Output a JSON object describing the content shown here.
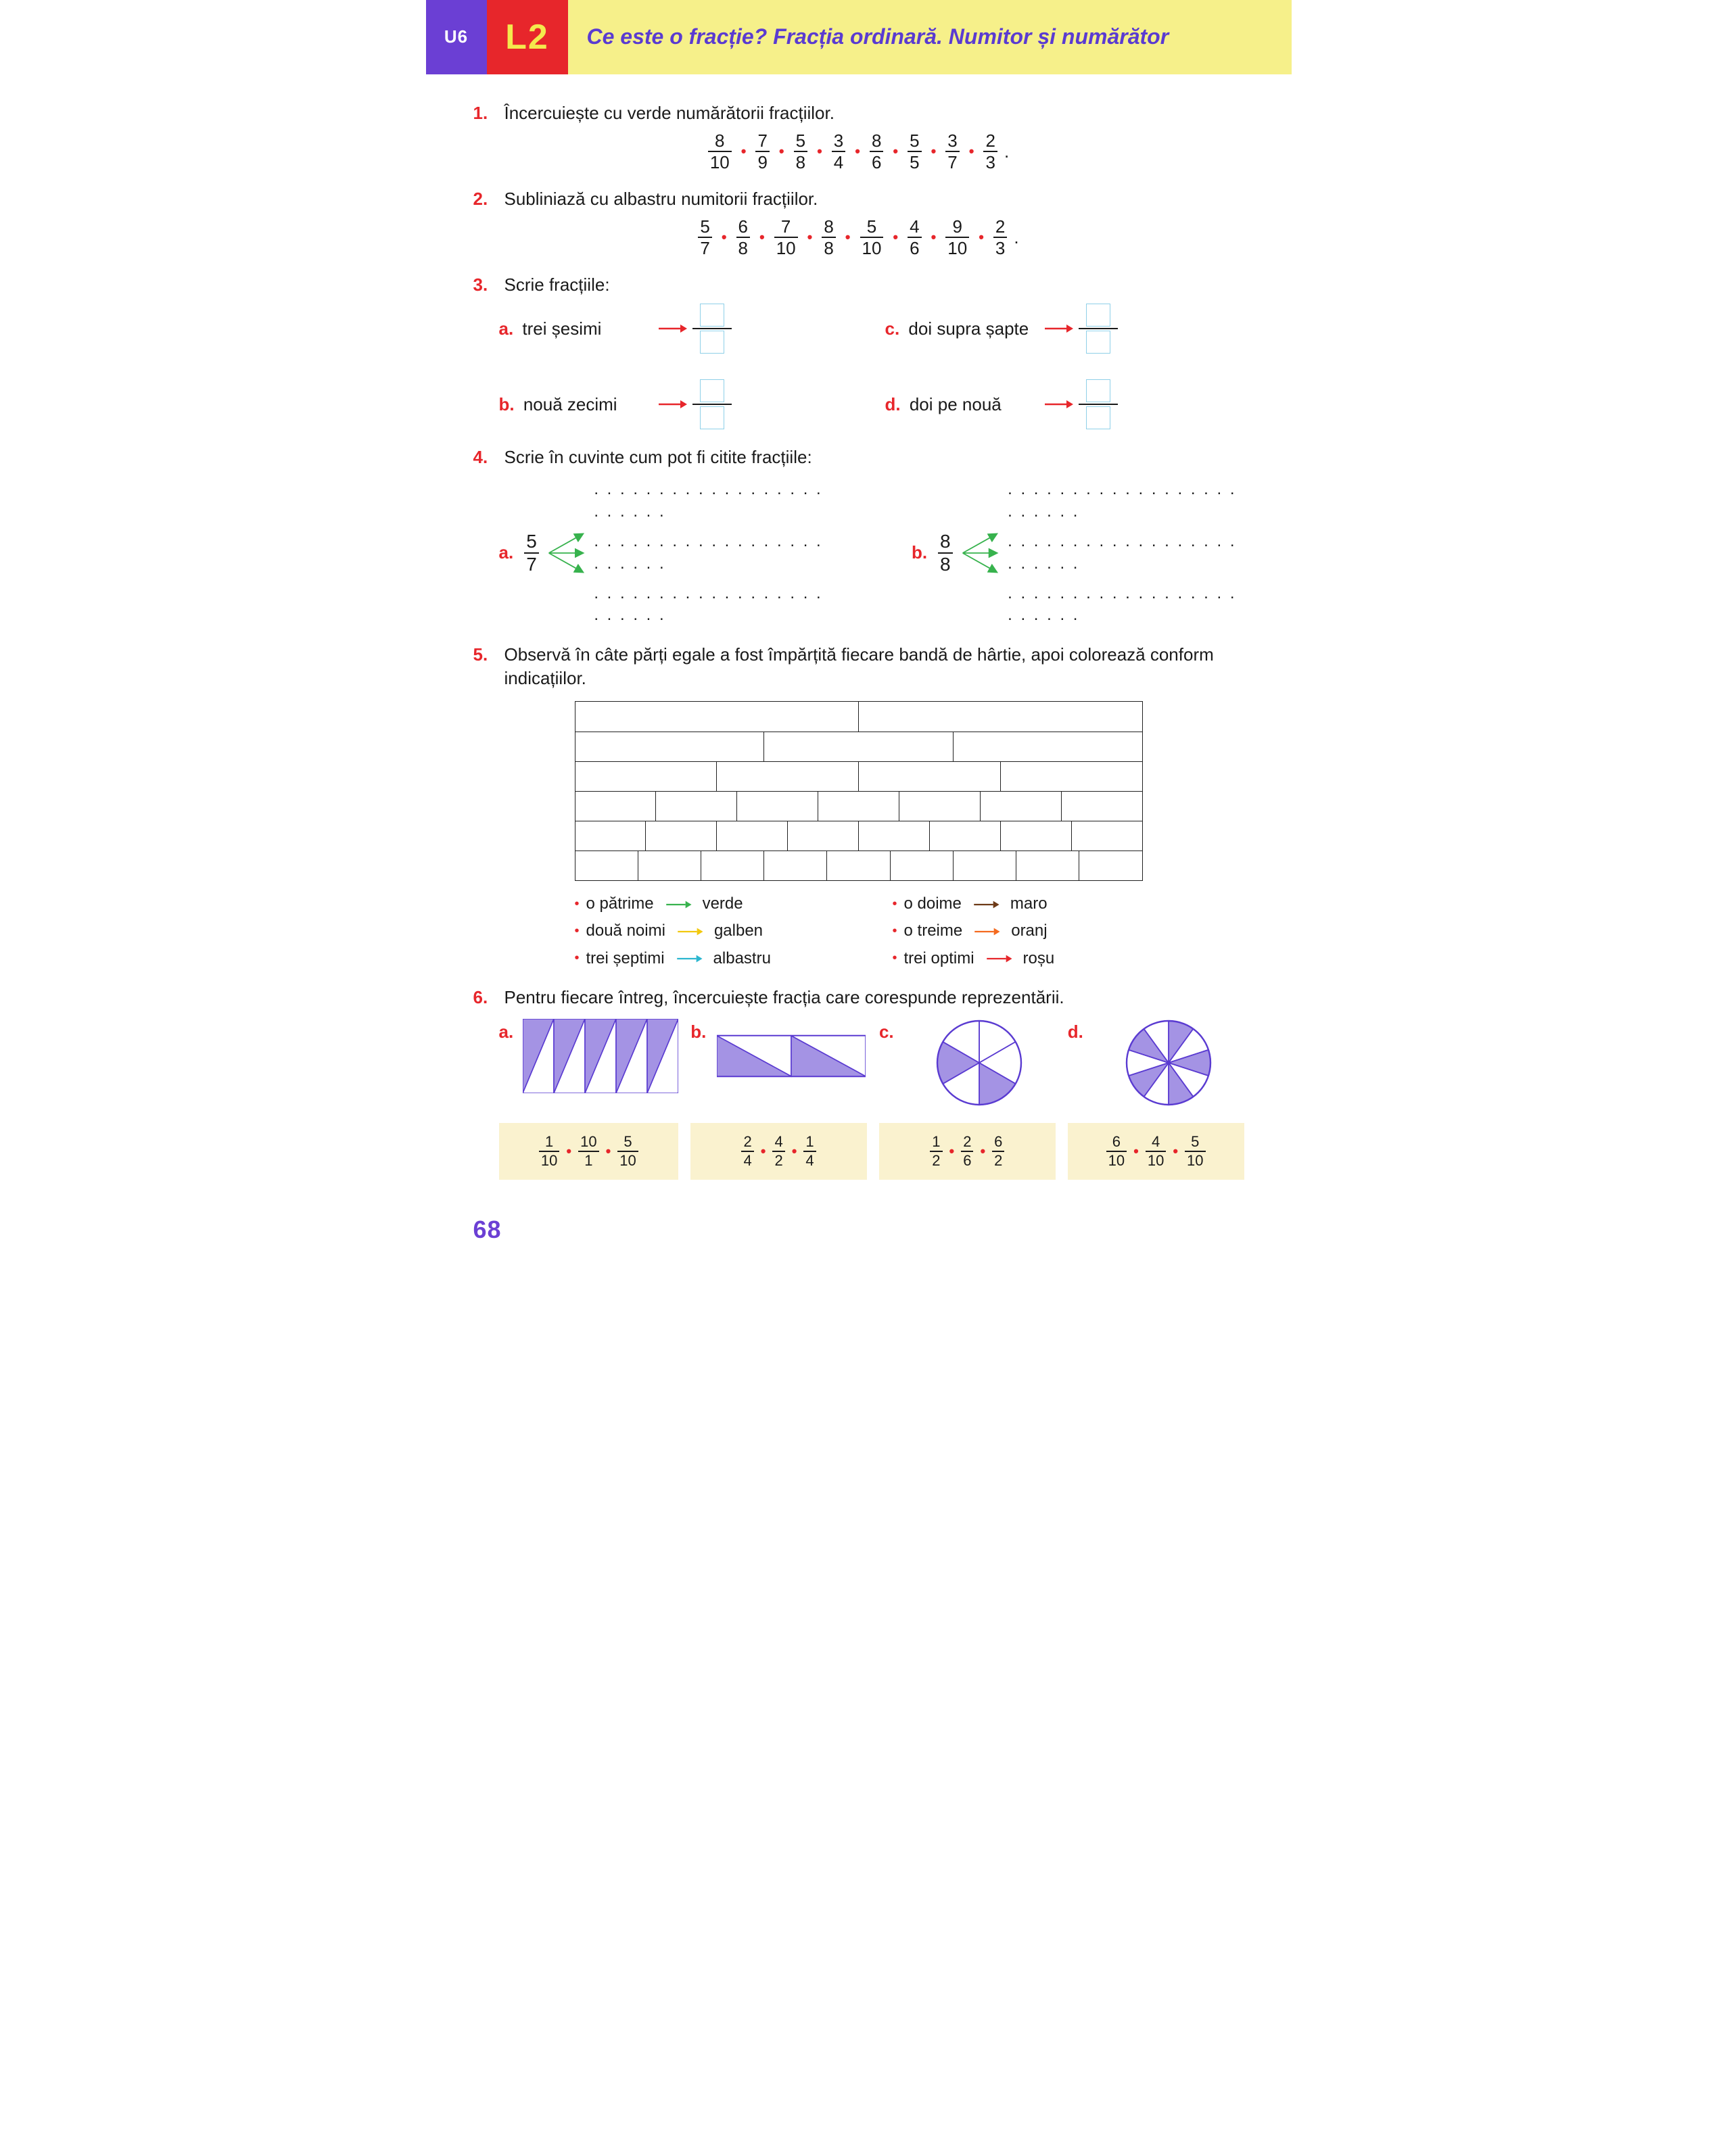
{
  "header": {
    "unit": "U6",
    "lesson": "L2",
    "title": "Ce este o fracție? Fracția ordinară. Numitor și numărător"
  },
  "ex1": {
    "prompt": "Încercuiește cu verde numărătorii fracțiilor.",
    "fractions": [
      {
        "n": "8",
        "d": "10"
      },
      {
        "n": "7",
        "d": "9"
      },
      {
        "n": "5",
        "d": "8"
      },
      {
        "n": "3",
        "d": "4"
      },
      {
        "n": "8",
        "d": "6"
      },
      {
        "n": "5",
        "d": "5"
      },
      {
        "n": "3",
        "d": "7"
      },
      {
        "n": "2",
        "d": "3"
      }
    ]
  },
  "ex2": {
    "prompt": "Subliniază cu albastru numitorii fracțiilor.",
    "fractions": [
      {
        "n": "5",
        "d": "7"
      },
      {
        "n": "6",
        "d": "8"
      },
      {
        "n": "7",
        "d": "10"
      },
      {
        "n": "8",
        "d": "8"
      },
      {
        "n": "5",
        "d": "10"
      },
      {
        "n": "4",
        "d": "6"
      },
      {
        "n": "9",
        "d": "10"
      },
      {
        "n": "2",
        "d": "3"
      }
    ]
  },
  "ex3": {
    "prompt": "Scrie fracțiile:",
    "items": [
      {
        "label": "a.",
        "text": "trei șesimi"
      },
      {
        "label": "c.",
        "text": "doi supra șapte"
      },
      {
        "label": "b.",
        "text": "nouă zecimi"
      },
      {
        "label": "d.",
        "text": "doi pe nouă"
      }
    ]
  },
  "ex4": {
    "prompt": "Scrie în cuvinte cum pot fi citite fracțiile:",
    "items": [
      {
        "label": "a.",
        "n": "5",
        "d": "7"
      },
      {
        "label": "b.",
        "n": "8",
        "d": "8"
      }
    ],
    "dotline": ". . . . . . . . . . . . . . . . . . . . . . . ."
  },
  "ex5": {
    "prompt": "Observă în câte părți egale a fost împărțită fiecare bandă de hârtie, apoi colorează conform indicațiilor.",
    "band_parts": [
      2,
      3,
      4,
      7,
      8,
      9
    ],
    "legend": [
      {
        "text": "o pătrime",
        "arrow_color": "#37b24d",
        "color_word": "verde"
      },
      {
        "text": "o doime",
        "arrow_color": "#6d3a17",
        "color_word": "maro"
      },
      {
        "text": "două noimi",
        "arrow_color": "#f2c90f",
        "color_word": "galben"
      },
      {
        "text": "o treime",
        "arrow_color": "#f46a1f",
        "color_word": "oranj"
      },
      {
        "text": "trei șeptimi",
        "arrow_color": "#2bb6cf",
        "color_word": "albastru"
      },
      {
        "text": "trei optimi",
        "arrow_color": "#e6272c",
        "color_word": "roșu"
      }
    ]
  },
  "ex6": {
    "prompt": "Pentru fiecare întreg, încercuiește fracția care corespunde reprezentării.",
    "fill": "#a493e4",
    "stroke": "#5a3bd1",
    "items": [
      {
        "label": "a.",
        "shape": "triangles10",
        "options": [
          {
            "n": "1",
            "d": "10"
          },
          {
            "n": "10",
            "d": "1"
          },
          {
            "n": "5",
            "d": "10"
          }
        ]
      },
      {
        "label": "b.",
        "shape": "rect4",
        "options": [
          {
            "n": "2",
            "d": "4"
          },
          {
            "n": "4",
            "d": "2"
          },
          {
            "n": "1",
            "d": "4"
          }
        ]
      },
      {
        "label": "c.",
        "shape": "pie6",
        "options": [
          {
            "n": "1",
            "d": "2"
          },
          {
            "n": "2",
            "d": "6"
          },
          {
            "n": "6",
            "d": "2"
          }
        ]
      },
      {
        "label": "d.",
        "shape": "pie10",
        "options": [
          {
            "n": "6",
            "d": "10"
          },
          {
            "n": "4",
            "d": "10"
          },
          {
            "n": "5",
            "d": "10"
          }
        ]
      }
    ]
  },
  "page_number": "68",
  "colors": {
    "accent_red": "#e7262b",
    "accent_purple": "#6b3fd4",
    "accent_yellow": "#f6f08a",
    "title_purple": "#5a3bd1",
    "shape_fill": "#a493e4",
    "opt_bg": "#faf2cf"
  }
}
